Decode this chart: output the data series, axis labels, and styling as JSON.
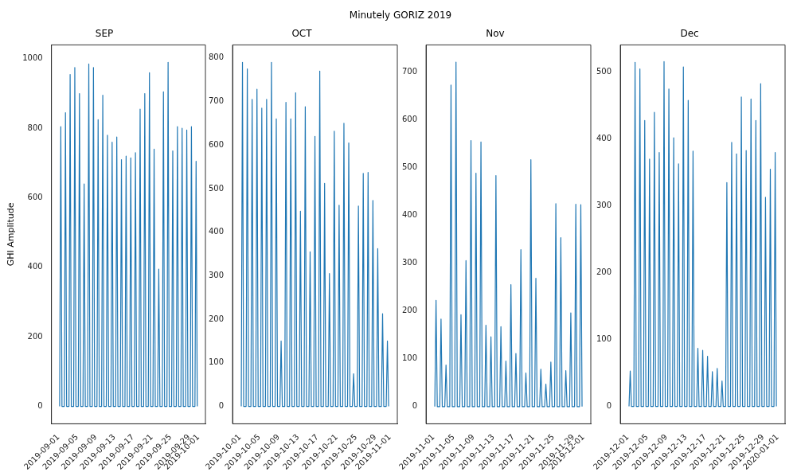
{
  "chart_data": [
    {
      "type": "line",
      "title": "SEP",
      "annotations": [
        "Minutely GORIZ 2019"
      ],
      "ylabel": "GHI Amplitude",
      "color": "#1f77b4",
      "grid": false,
      "x": [
        "2019-09-01T06:00",
        "2019-09-01T12:00",
        "2019-09-01T18:00",
        "2019-09-02T06:00",
        "2019-09-02T12:00",
        "2019-09-02T18:00",
        "2019-09-03T06:00",
        "2019-09-03T12:00",
        "2019-09-03T18:00",
        "2019-09-04T06:00",
        "2019-09-04T12:00",
        "2019-09-04T18:00",
        "2019-09-05T06:00",
        "2019-09-05T12:00",
        "2019-09-05T18:00",
        "2019-09-06T06:00",
        "2019-09-06T12:00",
        "2019-09-06T18:00",
        "2019-09-07T06:00",
        "2019-09-07T12:00",
        "2019-09-07T18:00",
        "2019-09-08T06:00",
        "2019-09-08T12:00",
        "2019-09-08T18:00",
        "2019-09-09T06:00",
        "2019-09-09T12:00",
        "2019-09-09T18:00",
        "2019-09-10T06:00",
        "2019-09-10T12:00",
        "2019-09-10T18:00",
        "2019-09-11T06:00",
        "2019-09-11T12:00",
        "2019-09-11T18:00",
        "2019-09-12T06:00",
        "2019-09-12T12:00",
        "2019-09-12T18:00",
        "2019-09-13T06:00",
        "2019-09-13T12:00",
        "2019-09-13T18:00",
        "2019-09-14T06:00",
        "2019-09-14T12:00",
        "2019-09-14T18:00",
        "2019-09-15T06:00",
        "2019-09-15T12:00",
        "2019-09-15T18:00",
        "2019-09-16T06:00",
        "2019-09-16T12:00",
        "2019-09-16T18:00",
        "2019-09-17T06:00",
        "2019-09-17T12:00",
        "2019-09-17T18:00",
        "2019-09-18T06:00",
        "2019-09-18T12:00",
        "2019-09-18T18:00",
        "2019-09-19T06:00",
        "2019-09-19T12:00",
        "2019-09-19T18:00",
        "2019-09-20T06:00",
        "2019-09-20T12:00",
        "2019-09-20T18:00",
        "2019-09-21T06:00",
        "2019-09-21T12:00",
        "2019-09-21T18:00",
        "2019-09-22T06:00",
        "2019-09-22T12:00",
        "2019-09-22T18:00",
        "2019-09-23T06:00",
        "2019-09-23T12:00",
        "2019-09-23T18:00",
        "2019-09-24T06:00",
        "2019-09-24T12:00",
        "2019-09-24T18:00",
        "2019-09-25T06:00",
        "2019-09-25T12:00",
        "2019-09-25T18:00",
        "2019-09-26T06:00",
        "2019-09-26T12:00",
        "2019-09-26T18:00",
        "2019-09-27T06:00",
        "2019-09-27T12:00",
        "2019-09-27T18:00",
        "2019-09-28T06:00",
        "2019-09-28T12:00",
        "2019-09-28T18:00",
        "2019-09-29T06:00",
        "2019-09-29T12:00",
        "2019-09-29T18:00",
        "2019-09-30T06:00",
        "2019-09-30T12:00",
        "2019-09-30T18:00"
      ],
      "values": [
        0,
        805,
        0,
        0,
        845,
        0,
        0,
        955,
        0,
        0,
        975,
        0,
        0,
        900,
        0,
        0,
        640,
        0,
        0,
        985,
        0,
        0,
        975,
        0,
        0,
        825,
        0,
        0,
        895,
        0,
        0,
        780,
        0,
        0,
        760,
        0,
        0,
        775,
        0,
        0,
        710,
        0,
        0,
        720,
        0,
        0,
        715,
        0,
        0,
        730,
        0,
        0,
        855,
        0,
        0,
        900,
        0,
        0,
        960,
        0,
        0,
        740,
        0,
        0,
        395,
        0,
        0,
        905,
        0,
        0,
        990,
        0,
        0,
        735,
        0,
        0,
        805,
        0,
        0,
        800,
        0,
        0,
        795,
        0,
        0,
        805,
        0,
        0,
        705,
        0
      ],
      "xlim": [
        "2019-08-30T12:00",
        "2019-10-02T12:00"
      ],
      "ylim": [
        -50,
        1040
      ],
      "yticks": [
        0,
        200,
        400,
        600,
        800,
        1000
      ],
      "xticks": [
        "2019-09-01",
        "2019-09-05",
        "2019-09-09",
        "2019-09-13",
        "2019-09-17",
        "2019-09-21",
        "2019-09-25",
        "2019-09-29",
        "2019-10-01"
      ]
    },
    {
      "type": "line",
      "title": "OCT",
      "color": "#1f77b4",
      "grid": false,
      "x": [
        "2019-10-01T06:00",
        "2019-10-01T12:00",
        "2019-10-01T18:00",
        "2019-10-02T06:00",
        "2019-10-02T12:00",
        "2019-10-02T18:00",
        "2019-10-03T06:00",
        "2019-10-03T12:00",
        "2019-10-03T18:00",
        "2019-10-04T06:00",
        "2019-10-04T12:00",
        "2019-10-04T18:00",
        "2019-10-05T06:00",
        "2019-10-05T12:00",
        "2019-10-05T18:00",
        "2019-10-06T06:00",
        "2019-10-06T12:00",
        "2019-10-06T18:00",
        "2019-10-07T06:00",
        "2019-10-07T12:00",
        "2019-10-07T18:00",
        "2019-10-08T06:00",
        "2019-10-08T12:00",
        "2019-10-08T18:00",
        "2019-10-09T06:00",
        "2019-10-09T12:00",
        "2019-10-09T18:00",
        "2019-10-10T06:00",
        "2019-10-10T12:00",
        "2019-10-10T18:00",
        "2019-10-11T06:00",
        "2019-10-11T12:00",
        "2019-10-11T18:00",
        "2019-10-12T06:00",
        "2019-10-12T12:00",
        "2019-10-12T18:00",
        "2019-10-13T06:00",
        "2019-10-13T12:00",
        "2019-10-13T18:00",
        "2019-10-14T06:00",
        "2019-10-14T12:00",
        "2019-10-14T18:00",
        "2019-10-15T06:00",
        "2019-10-15T12:00",
        "2019-10-15T18:00",
        "2019-10-16T06:00",
        "2019-10-16T12:00",
        "2019-10-16T18:00",
        "2019-10-17T06:00",
        "2019-10-17T12:00",
        "2019-10-17T18:00",
        "2019-10-18T06:00",
        "2019-10-18T12:00",
        "2019-10-18T18:00",
        "2019-10-19T06:00",
        "2019-10-19T12:00",
        "2019-10-19T18:00",
        "2019-10-20T06:00",
        "2019-10-20T12:00",
        "2019-10-20T18:00",
        "2019-10-21T06:00",
        "2019-10-21T12:00",
        "2019-10-21T18:00",
        "2019-10-22T06:00",
        "2019-10-22T12:00",
        "2019-10-22T18:00",
        "2019-10-23T06:00",
        "2019-10-23T12:00",
        "2019-10-23T18:00",
        "2019-10-24T06:00",
        "2019-10-24T12:00",
        "2019-10-24T18:00",
        "2019-10-25T06:00",
        "2019-10-25T12:00",
        "2019-10-25T18:00",
        "2019-10-26T06:00",
        "2019-10-26T12:00",
        "2019-10-26T18:00",
        "2019-10-27T06:00",
        "2019-10-27T12:00",
        "2019-10-27T18:00",
        "2019-10-28T06:00",
        "2019-10-28T12:00",
        "2019-10-28T18:00",
        "2019-10-29T06:00",
        "2019-10-29T12:00",
        "2019-10-29T18:00",
        "2019-10-30T06:00",
        "2019-10-30T12:00",
        "2019-10-30T18:00",
        "2019-10-31T06:00",
        "2019-10-31T12:00",
        "2019-10-31T18:00"
      ],
      "values": [
        0,
        790,
        0,
        0,
        775,
        0,
        0,
        705,
        0,
        0,
        728,
        0,
        0,
        685,
        0,
        0,
        705,
        0,
        0,
        790,
        0,
        0,
        660,
        0,
        0,
        150,
        0,
        0,
        698,
        0,
        0,
        660,
        0,
        0,
        720,
        0,
        0,
        448,
        0,
        0,
        688,
        0,
        0,
        355,
        0,
        0,
        620,
        0,
        0,
        770,
        0,
        0,
        512,
        0,
        0,
        305,
        0,
        0,
        632,
        0,
        0,
        462,
        0,
        0,
        650,
        0,
        0,
        605,
        0,
        0,
        75,
        0,
        0,
        460,
        0,
        0,
        535,
        0,
        0,
        537,
        0,
        0,
        473,
        0,
        0,
        362,
        0,
        0,
        213,
        0,
        0,
        150,
        0
      ],
      "xlim": [
        "2019-09-29T10:48",
        "2019-11-02T13:12"
      ],
      "ylim": [
        -40,
        830
      ],
      "yticks": [
        0,
        100,
        200,
        300,
        400,
        500,
        600,
        700,
        800
      ],
      "xticks": [
        "2019-10-01",
        "2019-10-05",
        "2019-10-09",
        "2019-10-13",
        "2019-10-17",
        "2019-10-21",
        "2019-10-25",
        "2019-10-29",
        "2019-11-01"
      ]
    },
    {
      "type": "line",
      "title": "Nov",
      "color": "#1f77b4",
      "grid": false,
      "x": [
        "2019-11-01T06:00",
        "2019-11-01T12:00",
        "2019-11-01T18:00",
        "2019-11-02T06:00",
        "2019-11-02T12:00",
        "2019-11-02T18:00",
        "2019-11-03T06:00",
        "2019-11-03T12:00",
        "2019-11-03T18:00",
        "2019-11-04T06:00",
        "2019-11-04T12:00",
        "2019-11-04T18:00",
        "2019-11-05T06:00",
        "2019-11-05T12:00",
        "2019-11-05T18:00",
        "2019-11-06T06:00",
        "2019-11-06T12:00",
        "2019-11-06T18:00",
        "2019-11-07T06:00",
        "2019-11-07T12:00",
        "2019-11-07T18:00",
        "2019-11-08T06:00",
        "2019-11-08T12:00",
        "2019-11-08T18:00",
        "2019-11-09T06:00",
        "2019-11-09T12:00",
        "2019-11-09T18:00",
        "2019-11-10T06:00",
        "2019-11-10T12:00",
        "2019-11-10T18:00",
        "2019-11-11T06:00",
        "2019-11-11T12:00",
        "2019-11-11T18:00",
        "2019-11-12T06:00",
        "2019-11-12T12:00",
        "2019-11-12T18:00",
        "2019-11-13T06:00",
        "2019-11-13T12:00",
        "2019-11-13T18:00",
        "2019-11-14T06:00",
        "2019-11-14T12:00",
        "2019-11-14T18:00",
        "2019-11-15T06:00",
        "2019-11-15T12:00",
        "2019-11-15T18:00",
        "2019-11-16T06:00",
        "2019-11-16T12:00",
        "2019-11-16T18:00",
        "2019-11-17T06:00",
        "2019-11-17T12:00",
        "2019-11-17T18:00",
        "2019-11-18T06:00",
        "2019-11-18T12:00",
        "2019-11-18T18:00",
        "2019-11-19T06:00",
        "2019-11-19T12:00",
        "2019-11-19T18:00",
        "2019-11-20T06:00",
        "2019-11-20T12:00",
        "2019-11-20T18:00",
        "2019-11-21T06:00",
        "2019-11-21T12:00",
        "2019-11-21T18:00",
        "2019-11-22T06:00",
        "2019-11-22T12:00",
        "2019-11-22T18:00",
        "2019-11-23T06:00",
        "2019-11-23T12:00",
        "2019-11-23T18:00",
        "2019-11-24T06:00",
        "2019-11-24T12:00",
        "2019-11-24T18:00",
        "2019-11-25T06:00",
        "2019-11-25T12:00",
        "2019-11-25T18:00",
        "2019-11-26T06:00",
        "2019-11-26T12:00",
        "2019-11-26T18:00",
        "2019-11-27T06:00",
        "2019-11-27T12:00",
        "2019-11-27T18:00",
        "2019-11-28T06:00",
        "2019-11-28T12:00",
        "2019-11-28T18:00",
        "2019-11-29T06:00",
        "2019-11-29T12:00",
        "2019-11-29T18:00",
        "2019-11-30T06:00",
        "2019-11-30T12:00",
        "2019-11-30T18:00"
      ],
      "values": [
        0,
        222,
        0,
        0,
        183,
        0,
        0,
        87,
        0,
        0,
        672,
        0,
        0,
        720,
        0,
        0,
        192,
        0,
        0,
        305,
        0,
        0,
        556,
        0,
        0,
        488,
        0,
        0,
        553,
        0,
        0,
        170,
        0,
        0,
        146,
        0,
        0,
        483,
        0,
        0,
        167,
        0,
        0,
        95,
        0,
        0,
        255,
        0,
        0,
        111,
        0,
        0,
        328,
        0,
        0,
        70,
        0,
        0,
        516,
        0,
        0,
        268,
        0,
        0,
        78,
        0,
        0,
        47,
        0,
        0,
        93,
        0,
        0,
        424,
        0,
        0,
        353,
        0,
        0,
        75,
        0,
        0,
        196,
        0,
        0,
        423,
        0,
        0,
        422,
        0
      ],
      "xlim": [
        "2019-10-30T12:00",
        "2019-12-02T12:00"
      ],
      "ylim": [
        -36,
        756
      ],
      "yticks": [
        0,
        100,
        200,
        300,
        400,
        500,
        600,
        700
      ],
      "xticks": [
        "2019-11-01",
        "2019-11-05",
        "2019-11-09",
        "2019-11-13",
        "2019-11-17",
        "2019-11-21",
        "2019-11-25",
        "2019-11-29",
        "2019-12-01"
      ]
    },
    {
      "type": "line",
      "title": "Dec",
      "color": "#1f77b4",
      "grid": false,
      "x": [
        "2019-12-01T06:00",
        "2019-12-01T12:00",
        "2019-12-01T18:00",
        "2019-12-02T06:00",
        "2019-12-02T12:00",
        "2019-12-02T18:00",
        "2019-12-03T06:00",
        "2019-12-03T12:00",
        "2019-12-03T18:00",
        "2019-12-04T06:00",
        "2019-12-04T12:00",
        "2019-12-04T18:00",
        "2019-12-05T06:00",
        "2019-12-05T12:00",
        "2019-12-05T18:00",
        "2019-12-06T06:00",
        "2019-12-06T12:00",
        "2019-12-06T18:00",
        "2019-12-07T06:00",
        "2019-12-07T12:00",
        "2019-12-07T18:00",
        "2019-12-08T06:00",
        "2019-12-08T12:00",
        "2019-12-08T18:00",
        "2019-12-09T06:00",
        "2019-12-09T12:00",
        "2019-12-09T18:00",
        "2019-12-10T06:00",
        "2019-12-10T12:00",
        "2019-12-10T18:00",
        "2019-12-11T06:00",
        "2019-12-11T12:00",
        "2019-12-11T18:00",
        "2019-12-12T06:00",
        "2019-12-12T12:00",
        "2019-12-12T18:00",
        "2019-12-13T06:00",
        "2019-12-13T12:00",
        "2019-12-13T18:00",
        "2019-12-14T06:00",
        "2019-12-14T12:00",
        "2019-12-14T18:00",
        "2019-12-15T06:00",
        "2019-12-15T12:00",
        "2019-12-15T18:00",
        "2019-12-16T06:00",
        "2019-12-16T12:00",
        "2019-12-16T18:00",
        "2019-12-17T06:00",
        "2019-12-17T12:00",
        "2019-12-17T18:00",
        "2019-12-18T06:00",
        "2019-12-18T12:00",
        "2019-12-18T18:00",
        "2019-12-19T06:00",
        "2019-12-19T12:00",
        "2019-12-19T18:00",
        "2019-12-20T06:00",
        "2019-12-20T12:00",
        "2019-12-20T18:00",
        "2019-12-21T06:00",
        "2019-12-21T12:00",
        "2019-12-21T18:00",
        "2019-12-22T06:00",
        "2019-12-22T12:00",
        "2019-12-22T18:00",
        "2019-12-23T06:00",
        "2019-12-23T12:00",
        "2019-12-23T18:00",
        "2019-12-24T06:00",
        "2019-12-24T12:00",
        "2019-12-24T18:00",
        "2019-12-25T06:00",
        "2019-12-25T12:00",
        "2019-12-25T18:00",
        "2019-12-26T06:00",
        "2019-12-26T12:00",
        "2019-12-26T18:00",
        "2019-12-27T06:00",
        "2019-12-27T12:00",
        "2019-12-27T18:00",
        "2019-12-28T06:00",
        "2019-12-28T12:00",
        "2019-12-28T18:00",
        "2019-12-29T06:00",
        "2019-12-29T12:00",
        "2019-12-29T18:00",
        "2019-12-30T06:00",
        "2019-12-30T12:00",
        "2019-12-30T18:00",
        "2019-12-31T06:00",
        "2019-12-31T12:00",
        "2019-12-31T18:00"
      ],
      "values": [
        0,
        53,
        0,
        0,
        515,
        0,
        0,
        505,
        0,
        0,
        428,
        0,
        0,
        370,
        0,
        0,
        440,
        0,
        0,
        380,
        0,
        0,
        516,
        0,
        0,
        475,
        0,
        0,
        402,
        0,
        0,
        363,
        0,
        0,
        508,
        0,
        0,
        458,
        0,
        0,
        382,
        0,
        0,
        87,
        0,
        0,
        84,
        0,
        0,
        75,
        0,
        0,
        52,
        0,
        0,
        57,
        0,
        0,
        38,
        0,
        0,
        335,
        0,
        0,
        395,
        0,
        0,
        378,
        0,
        0,
        463,
        0,
        0,
        383,
        0,
        0,
        460,
        0,
        0,
        428,
        0,
        0,
        483,
        0,
        0,
        313,
        0,
        0,
        355,
        0,
        0,
        380,
        0
      ],
      "xlim": [
        "2019-11-29T10:48",
        "2020-01-02T13:12"
      ],
      "ylim": [
        -26,
        541
      ],
      "yticks": [
        0,
        100,
        200,
        300,
        400,
        500
      ],
      "xticks": [
        "2019-12-01",
        "2019-12-05",
        "2019-12-09",
        "2019-12-13",
        "2019-12-17",
        "2019-12-21",
        "2019-12-25",
        "2019-12-29",
        "2020-01-01"
      ]
    }
  ]
}
